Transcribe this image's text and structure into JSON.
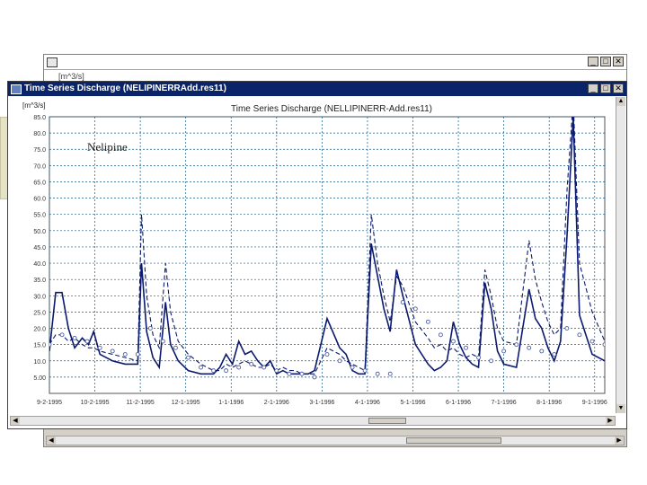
{
  "back_window": {
    "sub_label": "[m^3/s]",
    "buttons": [
      "_",
      "□",
      "✕"
    ]
  },
  "front_window": {
    "title": "Time Series Discharge (NELIPINERRAdd.res11)",
    "buttons": [
      "_",
      "□",
      "✕"
    ]
  },
  "colors": {
    "title_bar": "#0a246a",
    "series_line": "#0b1a6e",
    "grid": "#0f5a8a"
  },
  "chart_data": {
    "type": "line",
    "title": "Time Series Discharge (NELLIPINERR-Add.res11)",
    "ylabel": "[m^3/s]",
    "annotation": "Nelipine",
    "ylim": [
      0,
      85
    ],
    "yticks": [
      "5.00",
      "10.0",
      "15.0",
      "20.0",
      "25.0",
      "30.0",
      "35.0",
      "40.0",
      "45.0",
      "50.0",
      "55.0",
      "60.0",
      "65.0",
      "70.0",
      "75.0",
      "80.0",
      "85.0"
    ],
    "xlim": [
      0,
      44
    ],
    "xticks": [
      "9-2-1995",
      "10-2-1995",
      "11-2-1995",
      "12-1-1995",
      "1-1-1996",
      "2-1-1996",
      "3-1-1996",
      "4-1-1996",
      "5-1-1996",
      "6-1-1996",
      "7-1-1996",
      "8-1-1996",
      "9-1-1996"
    ],
    "xtick_pos": [
      0,
      3.6,
      7.2,
      10.8,
      14.4,
      18,
      21.6,
      25.2,
      28.8,
      32.4,
      36,
      39.6,
      43.2
    ],
    "grid": true,
    "series": [
      {
        "style": "solid",
        "x": [
          0,
          0.5,
          1,
          1.5,
          2,
          2.6,
          3.1,
          3.5,
          4,
          5,
          6,
          7,
          7.3,
          7.7,
          8.2,
          8.7,
          9.2,
          9.6,
          10.2,
          11,
          12,
          13,
          13.5,
          14,
          14.5,
          15,
          15.5,
          16,
          16.5,
          17,
          17.5,
          18,
          18.5,
          19,
          19.5,
          20,
          20.5,
          21,
          22,
          23,
          23.5,
          24,
          24.5,
          25,
          25.5,
          26,
          26.5,
          27,
          27.5,
          28,
          29,
          30,
          30.5,
          31,
          31.5,
          32,
          32.5,
          33,
          33.5,
          34,
          34.5,
          35,
          35.5,
          36,
          37,
          38,
          38.5,
          39,
          39.5,
          40,
          40.5,
          41,
          41.5,
          42,
          43,
          44
        ],
        "y": [
          13,
          31,
          31,
          20,
          14,
          17,
          15,
          19,
          12,
          10,
          9,
          9,
          40,
          19,
          11,
          8,
          28,
          15,
          10,
          7,
          6,
          6,
          8,
          12,
          9,
          16,
          12,
          13,
          10,
          8,
          10,
          6,
          7,
          6,
          6,
          6,
          6,
          7,
          23,
          14,
          12,
          7,
          6,
          6,
          46,
          36,
          26,
          19,
          38,
          30,
          15,
          9,
          7,
          8,
          10,
          22,
          15,
          11,
          9,
          8,
          34,
          26,
          13,
          9,
          8,
          32,
          23,
          20,
          14,
          10,
          16,
          48,
          85,
          24,
          12,
          10
        ]
      },
      {
        "style": "dashed",
        "x": [
          0,
          0.5,
          1,
          1.5,
          2,
          2.6,
          3.1,
          3.5,
          4,
          5,
          6,
          7,
          7.3,
          7.7,
          8.2,
          8.7,
          9.2,
          9.6,
          10.2,
          11,
          12,
          13,
          13.5,
          14,
          14.5,
          15,
          15.5,
          16,
          16.5,
          17,
          17.5,
          18,
          18.5,
          19,
          19.5,
          20,
          20.5,
          21,
          22,
          23,
          23.5,
          24,
          24.5,
          25,
          25.5,
          26,
          26.5,
          27,
          27.5,
          28,
          29,
          30,
          30.5,
          31,
          31.5,
          32,
          32.5,
          33,
          33.5,
          34,
          34.5,
          35,
          35.5,
          36,
          37,
          38,
          38.5,
          39,
          39.5,
          40,
          40.5,
          41,
          41.5,
          42,
          43,
          44
        ],
        "y": [
          15,
          18,
          18,
          16,
          17,
          15,
          14,
          14,
          13,
          12,
          11,
          10,
          55,
          30,
          18,
          14,
          40,
          25,
          16,
          12,
          9,
          7,
          7,
          9,
          8,
          9,
          10,
          9,
          8,
          8,
          9,
          7,
          8,
          7,
          7,
          6,
          6,
          6,
          14,
          12,
          10,
          9,
          8,
          7,
          55,
          40,
          30,
          22,
          36,
          33,
          22,
          17,
          14,
          15,
          13,
          14,
          12,
          11,
          12,
          11,
          38,
          30,
          20,
          16,
          15,
          47,
          35,
          28,
          22,
          18,
          20,
          62,
          90,
          40,
          25,
          16
        ]
      },
      {
        "style": "markers",
        "x": [
          0,
          1,
          2,
          3,
          4,
          5,
          6,
          7,
          8,
          9,
          10,
          11,
          12,
          13,
          14,
          15,
          16,
          17,
          18,
          19,
          20,
          21,
          22,
          23,
          24,
          25,
          26,
          27,
          28,
          29,
          30,
          31,
          32,
          33,
          34,
          35,
          36,
          37,
          38,
          39,
          40,
          41,
          42,
          43,
          44
        ],
        "y": [
          15,
          18,
          17,
          16,
          14,
          13,
          12,
          12,
          20,
          16,
          14,
          11,
          8,
          7,
          7,
          8,
          9,
          8,
          7,
          6,
          6,
          5,
          12,
          10,
          8,
          7,
          6,
          6,
          28,
          26,
          22,
          18,
          16,
          14,
          11,
          10,
          13,
          15,
          14,
          13,
          12,
          20,
          18,
          16,
          15
        ]
      }
    ]
  }
}
